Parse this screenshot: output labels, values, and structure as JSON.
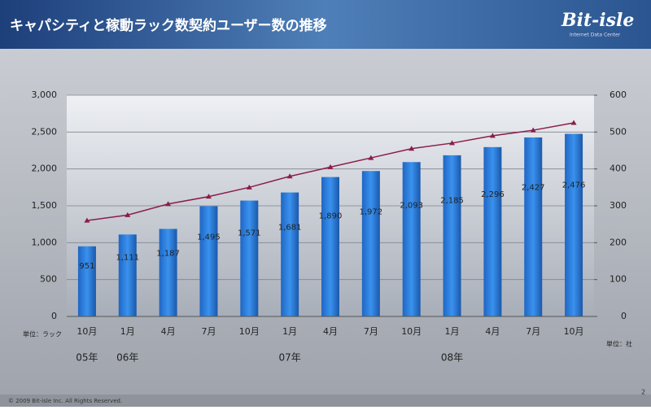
{
  "header": {
    "title": "キャパシティと稼動ラック数契約ユーザー数の推移",
    "logo": "Bit-isle",
    "logo_sub": "Internet Data Center"
  },
  "chart_data": {
    "type": "bar_line",
    "categories": [
      "10月",
      "1月",
      "4月",
      "7月",
      "10月",
      "1月",
      "4月",
      "7月",
      "10月",
      "1月",
      "4月",
      "7月",
      "10月"
    ],
    "year_categories": [
      "05年",
      "06年",
      null,
      null,
      null,
      "07年",
      null,
      null,
      null,
      "08年",
      null,
      null,
      null
    ],
    "y_unit": "単位：ラック",
    "y2_unit": "単位：社",
    "series": [
      {
        "type": "bar",
        "color": "#2f80de",
        "values": [
          951,
          1111,
          1187,
          1495,
          1571,
          1681,
          1890,
          1972,
          2093,
          2185,
          2296,
          2427,
          2476
        ],
        "value_labels": [
          "951",
          "1,111",
          "1,187",
          "1,495",
          "1,571",
          "1,681",
          "1,890",
          "1,972",
          "2,093",
          "2,185",
          "2,296",
          "2,427",
          "2,476"
        ]
      },
      {
        "type": "line",
        "axis": "y2",
        "color": "#8a1d4c",
        "values": [
          260,
          275,
          305,
          325,
          350,
          380,
          405,
          430,
          455,
          470,
          490,
          505,
          525
        ]
      }
    ],
    "ylim": [
      0,
      3000
    ],
    "yticks": [
      0,
      500,
      {
        "value": 1000,
        "label": "1,000"
      },
      {
        "value": 1500,
        "label": "1,500"
      },
      {
        "value": 2000,
        "label": "2,000"
      },
      {
        "value": 2500,
        "label": "2,500"
      },
      {
        "value": 3000,
        "label": "3,000"
      }
    ],
    "y2lim": [
      0,
      600
    ],
    "y2ticks": [
      0,
      100,
      200,
      300,
      400,
      500,
      600
    ],
    "grid": true
  },
  "footer": {
    "copyright": "© 2009 Bit-isle Inc. All Rights Reserved.",
    "page": "2"
  }
}
